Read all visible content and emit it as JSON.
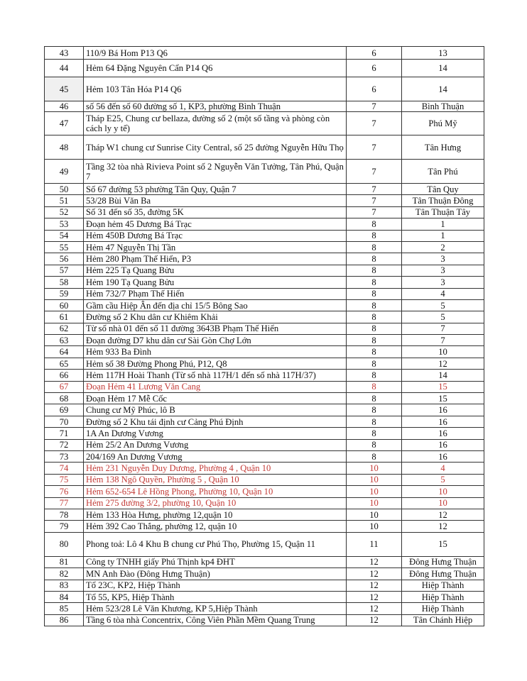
{
  "colors": {
    "highlight_text": "#c33a36",
    "border": "#333333"
  },
  "rows": [
    {
      "no": "43",
      "address": "110/9 Bá Hom P13 Q6",
      "district": "6",
      "ward": "13",
      "h": 18
    },
    {
      "no": "44",
      "address": "Hẻm 64 Đặng Nguyên Cẩn P14 Q6",
      "district": "6",
      "ward": "14",
      "h": 25
    },
    {
      "no": "45",
      "address": "Hẻm 103 Tân Hóa P14 Q6",
      "district": "6",
      "ward": "14",
      "h": 34,
      "gray": true
    },
    {
      "no": "46",
      "address": "số 56 đến số 60 đường số 1, KP3, phường Bình Thuận",
      "district": "7",
      "ward": "Bình Thuận",
      "h": 15
    },
    {
      "no": "47",
      "address": "Tháp E25, Chung cư bellaza, đường số 2 (một số tầng và phòng còn cách ly y tế)",
      "district": "7",
      "ward": "Phú Mỹ",
      "h": 33
    },
    {
      "no": "48",
      "address": "Tháp W1 chung cư Sunrise City Central, số 25 đường Nguyễn Hữu Thọ",
      "district": "7",
      "ward": "Tân Hưng",
      "h": 34
    },
    {
      "no": "49",
      "address": "Tầng 32 tòa nhà Rivieva Point số 2 Nguyễn Văn Tưởng, Tân Phú, Quận 7",
      "district": "7",
      "ward": "Tân Phú",
      "h": 34
    },
    {
      "no": "50",
      "address": "Số 67 đường 53 phường Tân Quy, Quận 7",
      "district": "7",
      "ward": "Tân Quy"
    },
    {
      "no": "51",
      "address": "53/28 Bùi Văn Ba",
      "district": "7",
      "ward": "Tân Thuận Đông"
    },
    {
      "no": "52",
      "address": "Số 31 đến số 35, đường 5K",
      "district": "7",
      "ward": "Tân Thuận Tây"
    },
    {
      "no": "53",
      "address": "Đoạn hẻm 45 Dương Bá Trạc",
      "district": "8",
      "ward": "1"
    },
    {
      "no": "54",
      "address": "Hẻm 450B Dương Bá Trạc",
      "district": "8",
      "ward": "1"
    },
    {
      "no": "55",
      "address": "Hẻm 47 Nguyễn Thị Tần",
      "district": "8",
      "ward": "2"
    },
    {
      "no": "56",
      "address": "Hẻm 280 Phạm Thế Hiển, P3",
      "district": "8",
      "ward": "3"
    },
    {
      "no": "57",
      "address": "Hẻm 225 Tạ Quang Bửu",
      "district": "8",
      "ward": "3"
    },
    {
      "no": "58",
      "address": "Hẻm 190 Tạ Quang Bửu",
      "district": "8",
      "ward": "3"
    },
    {
      "no": "59",
      "address": "Hẻm 732/7 Phạm Thế Hiển",
      "district": "8",
      "ward": "4"
    },
    {
      "no": "60",
      "address": "Gầm cầu Hiệp Ân đến địa chỉ 15/5 Bông Sao",
      "district": "8",
      "ward": "5"
    },
    {
      "no": "61",
      "address": "Đường số 2 Khu dân cư Khiêm Khải",
      "district": "8",
      "ward": "5"
    },
    {
      "no": "62",
      "address": "Từ số nhà 01 đến số 11 đường 3643B Phạm Thế Hiển",
      "district": "8",
      "ward": "7"
    },
    {
      "no": "63",
      "address": "Đoạn đường D7 khu dân cư Sài Gòn Chợ Lớn",
      "district": "8",
      "ward": "7"
    },
    {
      "no": "64",
      "address": "Hẻm 933 Ba Đình",
      "district": "8",
      "ward": "10"
    },
    {
      "no": "65",
      "address": "Hẻm số 38 Đường Phong Phú, P12, Q8",
      "district": "8",
      "ward": "12"
    },
    {
      "no": "66",
      "address": "Hẻm 117H Hoài Thanh (Từ số nhà 117H/1 đến số nhà 117H/37)",
      "district": "8",
      "ward": "14"
    },
    {
      "no": "67",
      "address": "Đoạn Hẻm 41 Lương Văn Cang",
      "district": "8",
      "ward": "15",
      "red": true
    },
    {
      "no": "68",
      "address": "Đoạn Hẻm 17 Mễ Cốc",
      "district": "8",
      "ward": "15"
    },
    {
      "no": "69",
      "address": "Chung cư Mỹ Phúc, lô B",
      "district": "8",
      "ward": "16"
    },
    {
      "no": "70",
      "address": "Đường số 2 Khu tái định cư Cảng Phú Định",
      "district": "8",
      "ward": "16"
    },
    {
      "no": "71",
      "address": "1A An Dương Vương",
      "district": "8",
      "ward": "16"
    },
    {
      "no": "72",
      "address": "Hẻm 25/2 An Dương Vương",
      "district": "8",
      "ward": "16"
    },
    {
      "no": "73",
      "address": "204/169 An Dương Vương",
      "district": "8",
      "ward": "16"
    },
    {
      "no": "74",
      "address": "Hẻm 231 Nguyễn Duy Dương, Phường 4 , Quận 10",
      "district": "10",
      "ward": "4",
      "red": true
    },
    {
      "no": "75",
      "address": "Hẻm 138 Ngô Quyền, Phường 5 , Quận 10",
      "district": "10",
      "ward": "5",
      "red": true
    },
    {
      "no": "76",
      "address": "Hẻm 652-654 Lê Hồng Phong, Phường 10, Quận 10",
      "district": "10",
      "ward": "10",
      "red": true
    },
    {
      "no": "77",
      "address": "Hẻm 275 đường 3/2, phường 10, Quận 10",
      "district": "10",
      "ward": "10",
      "red": true
    },
    {
      "no": "78",
      "address": "Hẻm 133 Hòa Hưng, phường 12,quận 10",
      "district": "10",
      "ward": "12"
    },
    {
      "no": "79",
      "address": "Hẻm 392 Cao Thắng, phường 12, quận 10",
      "district": "10",
      "ward": "12"
    },
    {
      "no": "80",
      "address": "Phong toả: Lô 4 Khu B chung cư Phú Thọ, Phường 15, Quận 11",
      "district": "11",
      "ward": "15",
      "h": 34
    },
    {
      "no": "81",
      "address": "Công ty TNHH giấy Phú Thịnh kp4 ĐHT",
      "district": "12",
      "ward": "Đông Hưng Thuận"
    },
    {
      "no": "82",
      "address": "MN Anh Đào (Đông Hưng Thuận)",
      "district": "12",
      "ward": "Đông Hưng Thuận"
    },
    {
      "no": "83",
      "address": "Tổ 23C, KP2, Hiệp Thành",
      "district": "12",
      "ward": "Hiệp Thành"
    },
    {
      "no": "84",
      "address": "Tổ 55, KP5, Hiệp Thành",
      "district": "12",
      "ward": "Hiệp Thành"
    },
    {
      "no": "85",
      "address": "Hẻm 523/28 Lê Văn Khương, KP 5,Hiệp Thành",
      "district": "12",
      "ward": "Hiệp Thành"
    },
    {
      "no": "86",
      "address": "Tầng 6 tòa nhà Concentrix, Công Viên Phần Mềm Quang Trung",
      "district": "12",
      "ward": "Tân Chánh Hiệp"
    }
  ]
}
